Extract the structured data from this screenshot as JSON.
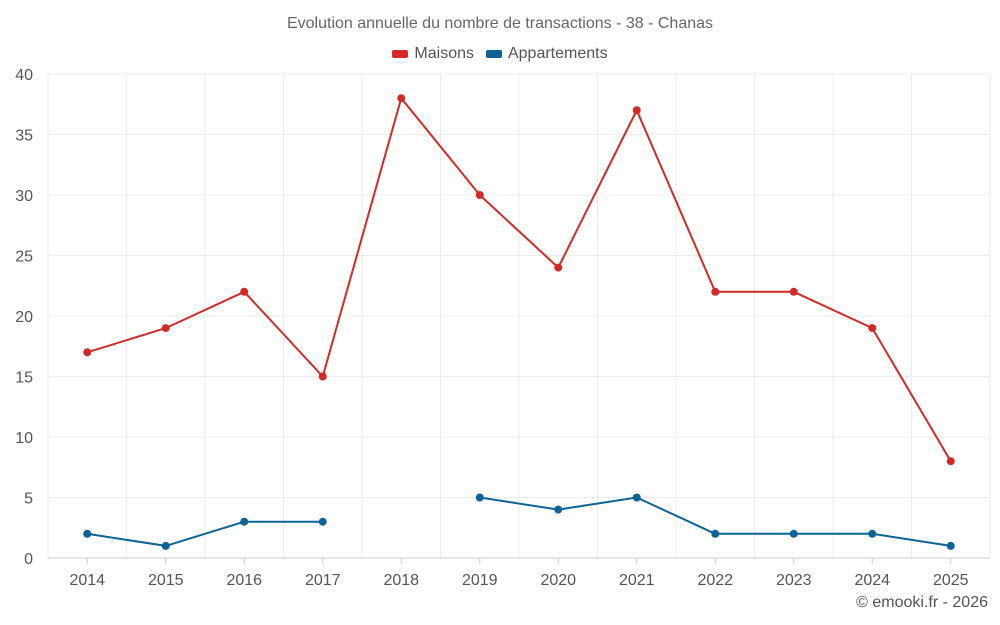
{
  "chart_data": {
    "type": "line",
    "title": "Evolution annuelle du nombre de transactions - 38 - Chanas",
    "categories": [
      "2014",
      "2015",
      "2016",
      "2017",
      "2018",
      "2019",
      "2020",
      "2021",
      "2022",
      "2023",
      "2024",
      "2025"
    ],
    "series": [
      {
        "name": "Maisons",
        "color": "#d42a26",
        "values": [
          17,
          19,
          22,
          15,
          38,
          30,
          24,
          37,
          22,
          22,
          19,
          8
        ]
      },
      {
        "name": "Appartements",
        "color": "#0b6398",
        "values": [
          2,
          1,
          3,
          3,
          null,
          5,
          4,
          5,
          2,
          2,
          2,
          1
        ]
      }
    ],
    "yticks": [
      0,
      5,
      10,
      15,
      20,
      25,
      30,
      35,
      40
    ],
    "ylim": [
      0,
      40
    ],
    "xlabel": "",
    "ylabel": "",
    "grid": true,
    "legend": "top-center"
  },
  "credit": "© emooki.fr - 2026"
}
